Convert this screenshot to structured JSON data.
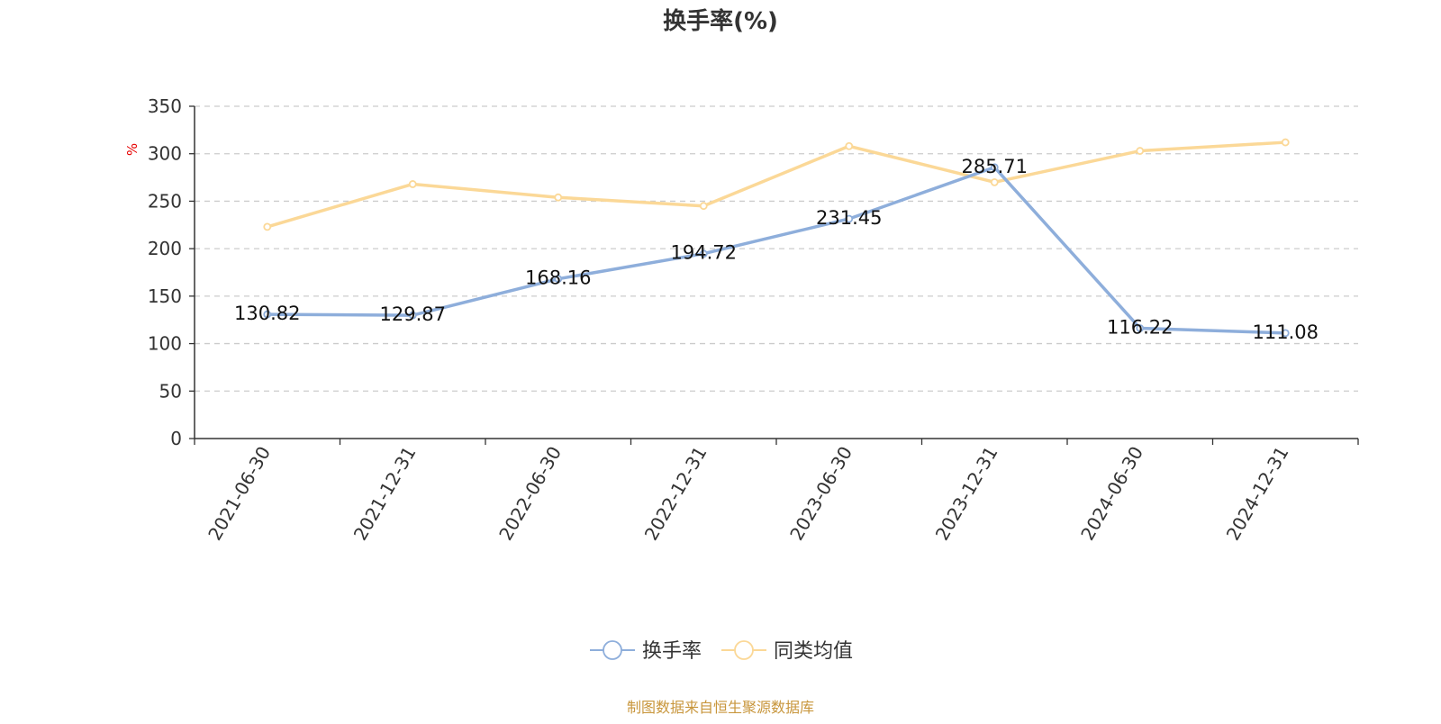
{
  "chart_data": {
    "type": "line",
    "title": "换手率(%)",
    "ylabel": "%",
    "ylim": [
      0,
      350
    ],
    "yticks": [
      0,
      50,
      100,
      150,
      200,
      250,
      300,
      350
    ],
    "grid": true,
    "legend_position": "bottom",
    "categories": [
      "2021-06-30",
      "2021-12-31",
      "2022-06-30",
      "2022-12-31",
      "2023-06-30",
      "2023-12-31",
      "2024-06-30",
      "2024-12-31"
    ],
    "series": [
      {
        "name": "换手率",
        "color": "#8eaedb",
        "values": [
          130.82,
          129.87,
          168.16,
          194.72,
          231.45,
          285.71,
          116.22,
          111.08
        ],
        "labels": [
          "130.82",
          "129.87",
          "168.16",
          "194.72",
          "231.45",
          "285.71",
          "116.22",
          "111.08"
        ]
      },
      {
        "name": "同类均值",
        "color": "#fbd897",
        "values": [
          223,
          268,
          254,
          245,
          308,
          270,
          303,
          312
        ]
      }
    ],
    "source": "制图数据来自恒生聚源数据库"
  }
}
